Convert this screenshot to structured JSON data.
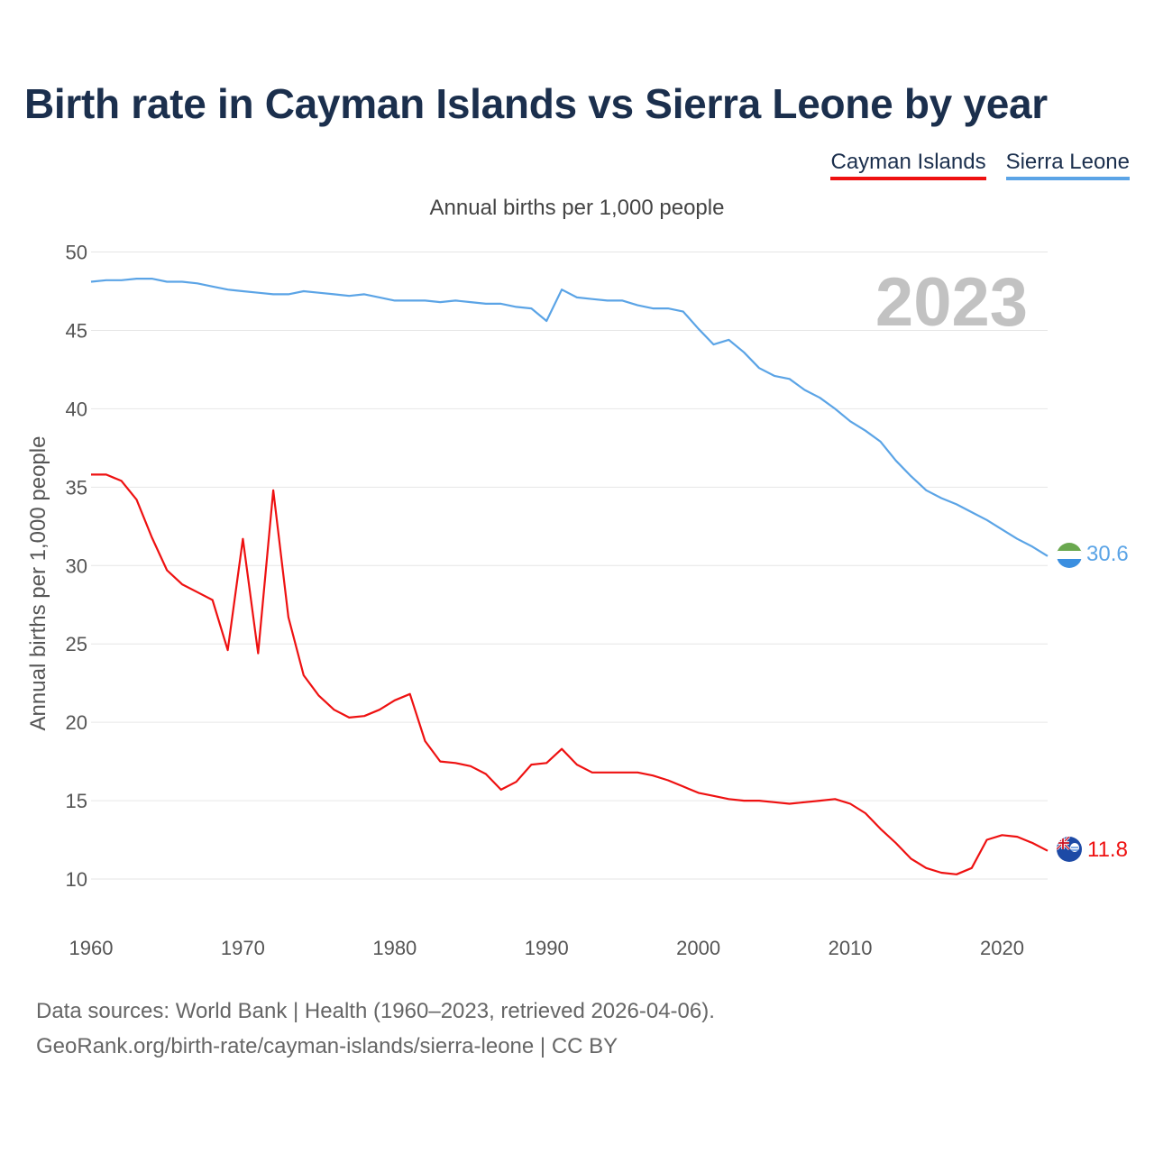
{
  "title": "Birth rate in Cayman Islands vs Sierra Leone by year",
  "subtitle": "Annual births per 1,000 people",
  "source_line1": "Data sources: World Bank | Health (1960–2023, retrieved 2026-04-06).",
  "source_line2": "GeoRank.org/birth-rate/cayman-islands/sierra-leone | CC BY",
  "colors": {
    "cayman": "#ee1111",
    "sierra": "#5ba4e6"
  },
  "chart_data": {
    "type": "line",
    "title": "Birth rate in Cayman Islands vs Sierra Leone by year",
    "subtitle": "Annual births per 1,000 people",
    "xlabel": "",
    "ylabel": "Annual births per 1,000 people",
    "xlim": [
      1960,
      2023
    ],
    "ylim": [
      7,
      50
    ],
    "yticks": [
      10,
      15,
      20,
      25,
      30,
      35,
      40,
      45,
      50
    ],
    "xticks": [
      1960,
      1970,
      1980,
      1990,
      2000,
      2010,
      2020
    ],
    "grid": true,
    "legend": "top-right",
    "year_watermark": "2023",
    "x": [
      1960,
      1961,
      1962,
      1963,
      1964,
      1965,
      1966,
      1967,
      1968,
      1969,
      1970,
      1971,
      1972,
      1973,
      1974,
      1975,
      1976,
      1977,
      1978,
      1979,
      1980,
      1981,
      1982,
      1983,
      1984,
      1985,
      1986,
      1987,
      1988,
      1989,
      1990,
      1991,
      1992,
      1993,
      1994,
      1995,
      1996,
      1997,
      1998,
      1999,
      2000,
      2001,
      2002,
      2003,
      2004,
      2005,
      2006,
      2007,
      2008,
      2009,
      2010,
      2011,
      2012,
      2013,
      2014,
      2015,
      2016,
      2017,
      2018,
      2019,
      2020,
      2021,
      2022,
      2023
    ],
    "series": [
      {
        "name": "Cayman Islands",
        "end_label": "11.8",
        "values": [
          35.8,
          35.8,
          35.4,
          34.2,
          31.8,
          29.7,
          28.8,
          28.3,
          27.8,
          24.6,
          31.7,
          24.4,
          34.8,
          26.7,
          23.0,
          21.7,
          20.8,
          20.3,
          20.4,
          20.8,
          21.4,
          21.8,
          18.8,
          17.5,
          17.4,
          17.2,
          16.7,
          15.7,
          16.2,
          17.3,
          17.4,
          18.3,
          17.3,
          16.8,
          16.8,
          16.8,
          16.8,
          16.6,
          16.3,
          15.9,
          15.5,
          15.3,
          15.1,
          15.0,
          15.0,
          14.9,
          14.8,
          14.9,
          15.0,
          15.1,
          14.8,
          14.2,
          13.2,
          12.3,
          11.3,
          10.7,
          10.4,
          10.3,
          10.7,
          12.5,
          12.8,
          12.7,
          12.3,
          11.8
        ]
      },
      {
        "name": "Sierra Leone",
        "end_label": "30.6",
        "values": [
          48.1,
          48.2,
          48.2,
          48.3,
          48.3,
          48.1,
          48.1,
          48.0,
          47.8,
          47.6,
          47.5,
          47.4,
          47.3,
          47.3,
          47.5,
          47.4,
          47.3,
          47.2,
          47.3,
          47.1,
          46.9,
          46.9,
          46.9,
          46.8,
          46.9,
          46.8,
          46.7,
          46.7,
          46.5,
          46.4,
          45.6,
          47.6,
          47.1,
          47.0,
          46.9,
          46.9,
          46.6,
          46.4,
          46.4,
          46.2,
          45.1,
          44.1,
          44.4,
          43.6,
          42.6,
          42.1,
          41.9,
          41.2,
          40.7,
          40.0,
          39.2,
          38.6,
          37.9,
          36.7,
          35.7,
          34.8,
          34.3,
          33.9,
          33.4,
          32.9,
          32.3,
          31.7,
          31.2,
          30.6
        ]
      }
    ]
  }
}
